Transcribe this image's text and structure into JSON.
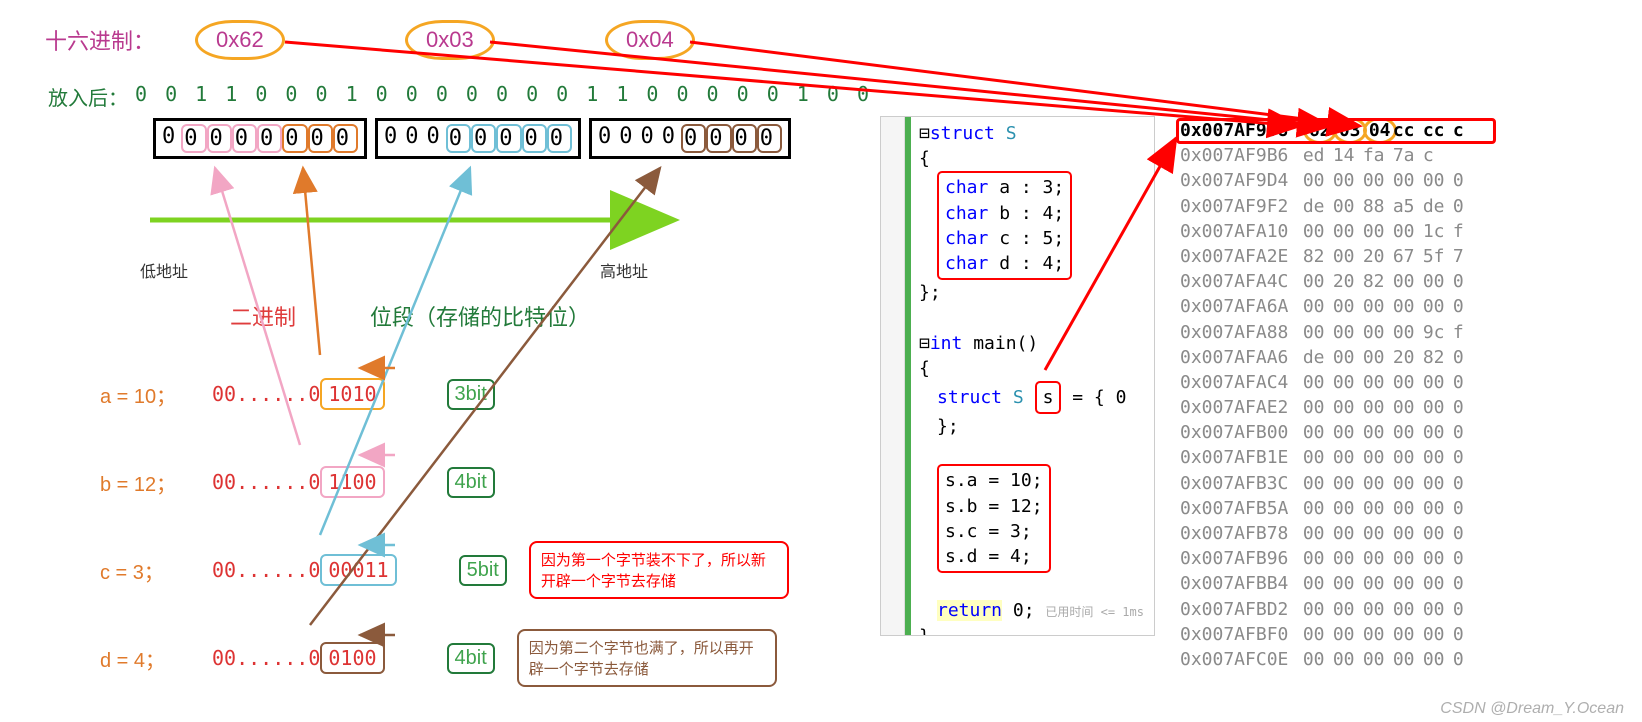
{
  "top": {
    "hex_label": "十六进制：",
    "hex_vals": [
      "0x62",
      "0x03",
      "0x04"
    ],
    "after_label": "放入后：",
    "binary_row": "0 0 1 1 0 0 0 1 0   0 0 0 0 0 0 1 1   0 0 0 0  0 1 0 0"
  },
  "bitboxes": {
    "bytes": [
      {
        "bits": "00000000",
        "marks": [
          {
            "from": 5,
            "len": 3,
            "color": "#e07a2b"
          },
          {
            "from": 1,
            "len": 4,
            "color": "#f2a6c4"
          }
        ]
      },
      {
        "bits": "00000000",
        "marks": [
          {
            "from": 3,
            "len": 5,
            "color": "#6fbfd6"
          }
        ]
      },
      {
        "bits": "00000000",
        "marks": [
          {
            "from": 4,
            "len": 4,
            "color": "#8b5a3c"
          }
        ]
      }
    ],
    "low_addr": "低地址",
    "high_addr": "高地址"
  },
  "headings": {
    "binary": "二进制",
    "bitfield": "位段（存储的比特位）"
  },
  "rows": [
    {
      "name": "a = 10；",
      "val_prefix": "00......0",
      "val_hl": "1010",
      "bit": "3bit",
      "box_color": "#f5a623",
      "bit_color": "#3fa34d",
      "assign_color": "#e07a2b"
    },
    {
      "name": "b = 12；",
      "val_prefix": "00......0",
      "val_hl": "1100",
      "bit": "4bit",
      "box_color": "#f2a6c4",
      "bit_color": "#3fa34d",
      "assign_color": "#e07a2b"
    },
    {
      "name": "c = 3；",
      "val_prefix": "00......0",
      "val_hl": "00011",
      "bit": "5bit",
      "box_color": "#6fbfd6",
      "bit_color": "#3fa34d",
      "assign_color": "#e07a2b",
      "note": "因为第一个字节装不下了，所以新开辟一个字节去存储",
      "note_color": "#ff0000"
    },
    {
      "name": "d = 4；",
      "val_prefix": "00......0",
      "val_hl": "0100",
      "bit": "4bit",
      "box_color": "#8b5a3c",
      "bit_color": "#3fa34d",
      "assign_color": "#e07a2b",
      "note": "因为第二个字节也满了，所以再开辟一个字节去存储",
      "note_color": "#8b5a3c"
    }
  ],
  "code": {
    "struct_kw": "struct",
    "struct_name": "S",
    "fields": [
      {
        "t": "char",
        "n": "a",
        "b": "3"
      },
      {
        "t": "char",
        "n": "b",
        "b": "4"
      },
      {
        "t": "char",
        "n": "c",
        "b": "5"
      },
      {
        "t": "char",
        "n": "d",
        "b": "4"
      }
    ],
    "main_kw": "int",
    "main_name": "main",
    "decl_struct": "struct",
    "decl_name": "S",
    "decl_var": "s",
    "decl_init": "= { 0 };",
    "assigns": [
      "s.a = 10;",
      "s.b = 12;",
      "s.c = 3;",
      "s.d = 4;"
    ],
    "ret": "return",
    "ret_val": "0;",
    "timing": "已用时间 <= 1ms"
  },
  "memory": {
    "rows": [
      {
        "addr": "0x007AF998",
        "bytes": [
          "62",
          "03",
          "04",
          "cc",
          "cc",
          "c"
        ]
      },
      {
        "addr": "0x007AF9B6",
        "bytes": [
          "ed",
          "14",
          "fa",
          "7a",
          "c"
        ]
      },
      {
        "addr": "0x007AF9D4",
        "bytes": [
          "00",
          "00",
          "00",
          "00",
          "00",
          "0"
        ]
      },
      {
        "addr": "0x007AF9F2",
        "bytes": [
          "de",
          "00",
          "88",
          "a5",
          "de",
          "0"
        ]
      },
      {
        "addr": "0x007AFA10",
        "bytes": [
          "00",
          "00",
          "00",
          "00",
          "1c",
          "f"
        ]
      },
      {
        "addr": "0x007AFA2E",
        "bytes": [
          "82",
          "00",
          "20",
          "67",
          "5f",
          "7"
        ]
      },
      {
        "addr": "0x007AFA4C",
        "bytes": [
          "00",
          "20",
          "82",
          "00",
          "00",
          "0"
        ]
      },
      {
        "addr": "0x007AFA6A",
        "bytes": [
          "00",
          "00",
          "00",
          "00",
          "00",
          "0"
        ]
      },
      {
        "addr": "0x007AFA88",
        "bytes": [
          "00",
          "00",
          "00",
          "00",
          "9c",
          "f"
        ]
      },
      {
        "addr": "0x007AFAA6",
        "bytes": [
          "de",
          "00",
          "00",
          "20",
          "82",
          "0"
        ]
      },
      {
        "addr": "0x007AFAC4",
        "bytes": [
          "00",
          "00",
          "00",
          "00",
          "00",
          "0"
        ]
      },
      {
        "addr": "0x007AFAE2",
        "bytes": [
          "00",
          "00",
          "00",
          "00",
          "00",
          "0"
        ]
      },
      {
        "addr": "0x007AFB00",
        "bytes": [
          "00",
          "00",
          "00",
          "00",
          "00",
          "0"
        ]
      },
      {
        "addr": "0x007AFB1E",
        "bytes": [
          "00",
          "00",
          "00",
          "00",
          "00",
          "0"
        ]
      },
      {
        "addr": "0x007AFB3C",
        "bytes": [
          "00",
          "00",
          "00",
          "00",
          "00",
          "0"
        ]
      },
      {
        "addr": "0x007AFB5A",
        "bytes": [
          "00",
          "00",
          "00",
          "00",
          "00",
          "0"
        ]
      },
      {
        "addr": "0x007AFB78",
        "bytes": [
          "00",
          "00",
          "00",
          "00",
          "00",
          "0"
        ]
      },
      {
        "addr": "0x007AFB96",
        "bytes": [
          "00",
          "00",
          "00",
          "00",
          "00",
          "0"
        ]
      },
      {
        "addr": "0x007AFBB4",
        "bytes": [
          "00",
          "00",
          "00",
          "00",
          "00",
          "0"
        ]
      },
      {
        "addr": "0x007AFBD2",
        "bytes": [
          "00",
          "00",
          "00",
          "00",
          "00",
          "0"
        ]
      },
      {
        "addr": "0x007AFBF0",
        "bytes": [
          "00",
          "00",
          "00",
          "00",
          "00",
          "0"
        ]
      },
      {
        "addr": "0x007AFC0E",
        "bytes": [
          "00",
          "00",
          "00",
          "00",
          "00",
          "0"
        ]
      }
    ]
  },
  "colors": {
    "magenta": "#b93a8f",
    "darkgreen": "#227a3a",
    "orange": "#e07a2b",
    "pink": "#f2a6c4",
    "cyan": "#6fbfd6",
    "brown": "#8b5a3c",
    "red": "#ff0000",
    "lime": "#7ed321",
    "goldring": "#f5a623"
  },
  "watermark": "CSDN @Dream_Y.Ocean"
}
